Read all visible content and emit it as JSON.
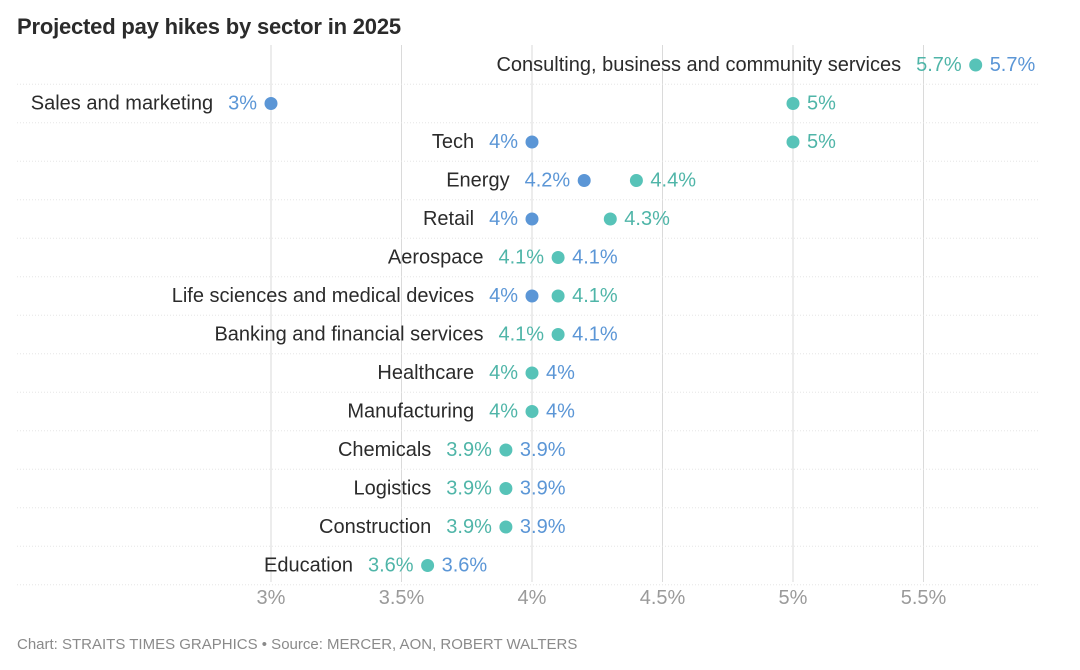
{
  "title": "Projected pay hikes by sector in 2025",
  "footer": "Chart: STRAITS TIMES GRAPHICS • Source: MERCER, AON, ROBERT WALTERS",
  "colors": {
    "low_dot": "#5b96d6",
    "high_dot": "#57c3b8",
    "label_low": "#5b96d6",
    "label_high": "#4fb5a8",
    "grid": "#dadada",
    "category_text": "#2b2b2b",
    "tick_text": "#9a9a9a"
  },
  "chart_data": {
    "type": "dumbbell",
    "xlim": [
      3,
      5.8
    ],
    "xticks": [
      {
        "value": 3,
        "label": "3%"
      },
      {
        "value": 3.5,
        "label": "3.5%"
      },
      {
        "value": 4,
        "label": "4%"
      },
      {
        "value": 4.5,
        "label": "4.5%"
      },
      {
        "value": 5,
        "label": "5%"
      },
      {
        "value": 5.5,
        "label": "5.5%"
      }
    ],
    "grid": true,
    "rows": [
      {
        "category": "Consulting, business and community services",
        "low": 5.7,
        "high": 5.7,
        "low_label": "5.7%",
        "high_label": "5.7%"
      },
      {
        "category": "Sales and marketing",
        "low": 3.0,
        "high": 5.0,
        "low_label": "3%",
        "high_label": "5%"
      },
      {
        "category": "Tech",
        "low": 4.0,
        "high": 5.0,
        "low_label": "4%",
        "high_label": "5%"
      },
      {
        "category": "Energy",
        "low": 4.2,
        "high": 4.4,
        "low_label": "4.2%",
        "high_label": "4.4%"
      },
      {
        "category": "Retail",
        "low": 4.0,
        "high": 4.3,
        "low_label": "4%",
        "high_label": "4.3%"
      },
      {
        "category": "Aerospace",
        "low": 4.1,
        "high": 4.1,
        "low_label": "4.1%",
        "high_label": "4.1%"
      },
      {
        "category": "Life sciences and medical devices",
        "low": 4.0,
        "high": 4.1,
        "low_label": "4%",
        "high_label": "4.1%"
      },
      {
        "category": "Banking and financial services",
        "low": 4.1,
        "high": 4.1,
        "low_label": "4.1%",
        "high_label": "4.1%"
      },
      {
        "category": "Healthcare",
        "low": 4.0,
        "high": 4.0,
        "low_label": "4%",
        "high_label": "4%"
      },
      {
        "category": "Manufacturing",
        "low": 4.0,
        "high": 4.0,
        "low_label": "4%",
        "high_label": "4%"
      },
      {
        "category": "Chemicals",
        "low": 3.9,
        "high": 3.9,
        "low_label": "3.9%",
        "high_label": "3.9%"
      },
      {
        "category": "Logistics",
        "low": 3.9,
        "high": 3.9,
        "low_label": "3.9%",
        "high_label": "3.9%"
      },
      {
        "category": "Construction",
        "low": 3.9,
        "high": 3.9,
        "low_label": "3.9%",
        "high_label": "3.9%"
      },
      {
        "category": "Education",
        "low": 3.6,
        "high": 3.6,
        "low_label": "3.6%",
        "high_label": "3.6%"
      }
    ]
  }
}
